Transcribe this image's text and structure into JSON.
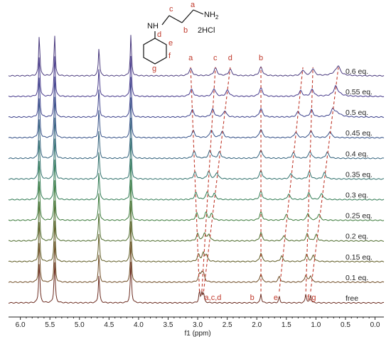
{
  "chart_data": {
    "type": "line",
    "title": "",
    "xlabel": "f1 (ppm)",
    "ylabel": "",
    "xlim": [
      6.2,
      -0.15
    ],
    "x_reversed": true,
    "grid": false,
    "x_ticks": [
      "6.0",
      "5.5",
      "5.0",
      "4.5",
      "4.0",
      "3.5",
      "3.0",
      "2.5",
      "2.0",
      "1.5",
      "1.0",
      "0.5",
      "0.0"
    ],
    "series_labels": [
      "free",
      "0.1 eq.",
      "0.15 eq.",
      "0.2 eq.",
      "0.25 eq.",
      "0.3 eq.",
      "0.35 eq.",
      "0.4 eq.",
      "0.45 eq.",
      "0.5 eq.",
      "0.55 eq.",
      "0.6 eq."
    ],
    "series_colors": [
      "#6b2b1f",
      "#6e4a22",
      "#5e5a22",
      "#4c6a2a",
      "#3b7a3a",
      "#2f7a52",
      "#2d6f6a",
      "#2f5f7a",
      "#334f86",
      "#3a3f8a",
      "#44378a",
      "#4a3a7e"
    ],
    "peak_labels_top": [
      "a",
      "c",
      "d",
      "b"
    ],
    "peak_labels_free": [
      "a,c,d",
      "b",
      "e",
      "f,g"
    ],
    "guest_peaks_ppm": {
      "free": [
        2.97,
        2.93,
        2.9,
        1.93,
        1.62,
        1.17,
        1.09
      ],
      "0.6 eq.": [
        3.12,
        2.7,
        2.45,
        1.93,
        1.22,
        1.05,
        0.62
      ]
    },
    "host_peaks_ppm": [
      5.68,
      5.42,
      4.67,
      4.13
    ]
  },
  "molecule": {
    "amine_label": "NH",
    "nh2_label": "NH",
    "nh2_sub": "2",
    "salt_label": "2HCl",
    "letters": [
      "a",
      "b",
      "c",
      "d",
      "e",
      "f",
      "g"
    ]
  }
}
